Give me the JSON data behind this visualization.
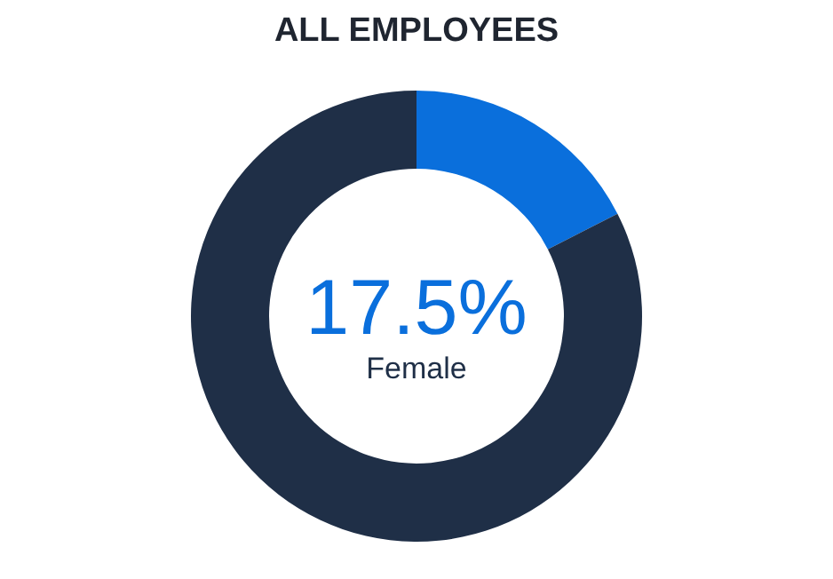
{
  "chart_data": {
    "type": "donut",
    "title": "ALL EMPLOYEES",
    "categories": [
      "Female",
      null
    ],
    "values": [
      17.5,
      82.5
    ],
    "colors": [
      "#0a6fdc",
      "#1f2f47"
    ],
    "value_labels": [
      "17.5%",
      null
    ],
    "legend": false
  }
}
